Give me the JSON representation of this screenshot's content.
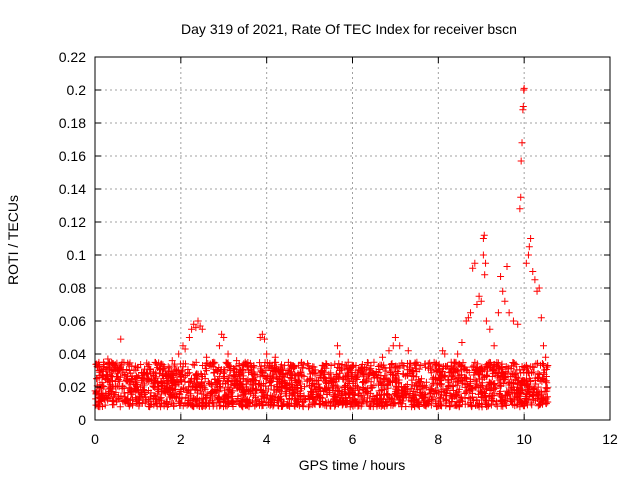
{
  "chart_data": {
    "type": "scatter",
    "title": "Day 319 of 2021, Rate Of TEC Index for receiver bscn",
    "xlabel": "GPS time / hours",
    "ylabel": "ROTI / TECUs",
    "xlim": [
      0,
      12
    ],
    "ylim": [
      0,
      0.22
    ],
    "xticks": [
      0,
      2,
      4,
      6,
      8,
      10,
      12
    ],
    "xtick_labels": [
      "0",
      "2",
      "4",
      "6",
      "8",
      "10",
      "12"
    ],
    "yticks": [
      0,
      0.02,
      0.04,
      0.06,
      0.08,
      0.1,
      0.12,
      0.14,
      0.16,
      0.18,
      0.2,
      0.22
    ],
    "ytick_labels": [
      "0",
      "0.02",
      "0.04",
      "0.06",
      "0.08",
      "0.1",
      "0.12",
      "0.14",
      "0.16",
      "0.18",
      "0.2",
      "0.22"
    ],
    "grid": true,
    "marker": "+",
    "color": "#ff0000",
    "x_range_of_data": [
      0,
      10.55
    ],
    "baseline_band": [
      0.008,
      0.035
    ],
    "series": [
      {
        "name": "ROTI",
        "points": [
          [
            0.05,
            0.025
          ],
          [
            0.1,
            0.03
          ],
          [
            0.2,
            0.035
          ],
          [
            0.3,
            0.037
          ],
          [
            0.45,
            0.033
          ],
          [
            0.6,
            0.049
          ],
          [
            0.8,
            0.03
          ],
          [
            1.0,
            0.032
          ],
          [
            1.3,
            0.028
          ],
          [
            1.6,
            0.031
          ],
          [
            1.8,
            0.036
          ],
          [
            1.95,
            0.04
          ],
          [
            2.05,
            0.045
          ],
          [
            2.1,
            0.043
          ],
          [
            2.2,
            0.05
          ],
          [
            2.25,
            0.055
          ],
          [
            2.3,
            0.058
          ],
          [
            2.35,
            0.056
          ],
          [
            2.4,
            0.06
          ],
          [
            2.45,
            0.057
          ],
          [
            2.5,
            0.055
          ],
          [
            2.6,
            0.038
          ],
          [
            2.75,
            0.034
          ],
          [
            2.9,
            0.045
          ],
          [
            2.95,
            0.052
          ],
          [
            3.0,
            0.05
          ],
          [
            3.1,
            0.04
          ],
          [
            3.3,
            0.036
          ],
          [
            3.5,
            0.035
          ],
          [
            3.7,
            0.033
          ],
          [
            3.85,
            0.05
          ],
          [
            3.9,
            0.052
          ],
          [
            3.95,
            0.049
          ],
          [
            4.0,
            0.04
          ],
          [
            4.2,
            0.038
          ],
          [
            4.5,
            0.03
          ],
          [
            4.8,
            0.029
          ],
          [
            5.0,
            0.031
          ],
          [
            5.3,
            0.03
          ],
          [
            5.5,
            0.033
          ],
          [
            5.65,
            0.045
          ],
          [
            5.7,
            0.04
          ],
          [
            5.9,
            0.035
          ],
          [
            6.2,
            0.032
          ],
          [
            6.5,
            0.035
          ],
          [
            6.7,
            0.038
          ],
          [
            6.85,
            0.042
          ],
          [
            6.95,
            0.045
          ],
          [
            7.0,
            0.05
          ],
          [
            7.1,
            0.045
          ],
          [
            7.3,
            0.042
          ],
          [
            7.5,
            0.035
          ],
          [
            7.7,
            0.032
          ],
          [
            8.0,
            0.033
          ],
          [
            8.1,
            0.042
          ],
          [
            8.15,
            0.04
          ],
          [
            8.3,
            0.035
          ],
          [
            8.45,
            0.04
          ],
          [
            8.55,
            0.047
          ],
          [
            8.65,
            0.06
          ],
          [
            8.7,
            0.062
          ],
          [
            8.75,
            0.065
          ],
          [
            8.8,
            0.092
          ],
          [
            8.85,
            0.095
          ],
          [
            8.9,
            0.07
          ],
          [
            8.95,
            0.075
          ],
          [
            9.0,
            0.072
          ],
          [
            9.05,
            0.11
          ],
          [
            9.07,
            0.112
          ],
          [
            9.05,
            0.1
          ],
          [
            9.1,
            0.095
          ],
          [
            9.08,
            0.088
          ],
          [
            9.12,
            0.06
          ],
          [
            9.2,
            0.055
          ],
          [
            9.3,
            0.045
          ],
          [
            9.4,
            0.065
          ],
          [
            9.45,
            0.087
          ],
          [
            9.5,
            0.078
          ],
          [
            9.55,
            0.072
          ],
          [
            9.6,
            0.093
          ],
          [
            9.65,
            0.065
          ],
          [
            9.75,
            0.06
          ],
          [
            9.85,
            0.058
          ],
          [
            9.9,
            0.128
          ],
          [
            9.92,
            0.135
          ],
          [
            9.93,
            0.157
          ],
          [
            9.95,
            0.168
          ],
          [
            9.97,
            0.188
          ],
          [
            9.98,
            0.19
          ],
          [
            9.99,
            0.2
          ],
          [
            10.0,
            0.201
          ],
          [
            10.05,
            0.095
          ],
          [
            10.1,
            0.1
          ],
          [
            10.12,
            0.105
          ],
          [
            10.15,
            0.11
          ],
          [
            10.2,
            0.09
          ],
          [
            10.25,
            0.085
          ],
          [
            10.3,
            0.078
          ],
          [
            10.35,
            0.08
          ],
          [
            10.4,
            0.062
          ],
          [
            10.45,
            0.045
          ],
          [
            10.5,
            0.038
          ],
          [
            10.55,
            0.033
          ]
        ]
      }
    ]
  }
}
